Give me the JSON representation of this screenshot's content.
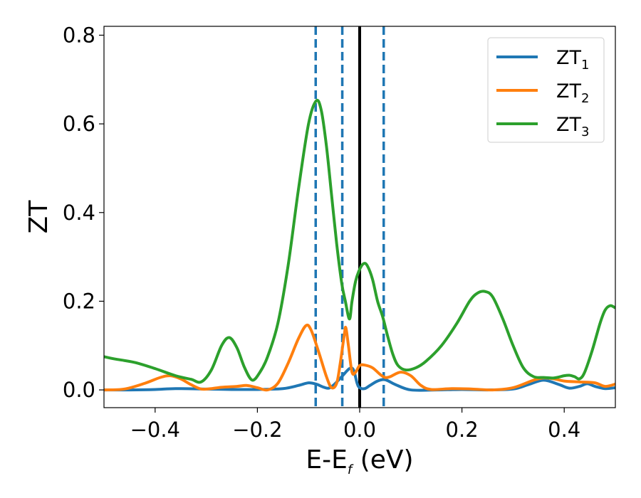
{
  "chart_data": {
    "type": "line",
    "xlabel": {
      "main": "E-E",
      "sub": "f",
      "rest": " (eV)"
    },
    "ylabel": "ZT",
    "xlim": [
      -0.5,
      0.5
    ],
    "ylim": [
      -0.04,
      0.82
    ],
    "xticks": [
      {
        "value": -0.4,
        "label": "−0.4"
      },
      {
        "value": -0.2,
        "label": "−0.2"
      },
      {
        "value": 0.0,
        "label": "0.0"
      },
      {
        "value": 0.2,
        "label": "0.2"
      },
      {
        "value": 0.4,
        "label": "0.4"
      }
    ],
    "yticks": [
      {
        "value": 0.0,
        "label": "0.0"
      },
      {
        "value": 0.2,
        "label": "0.2"
      },
      {
        "value": 0.4,
        "label": "0.4"
      },
      {
        "value": 0.6,
        "label": "0.6"
      },
      {
        "value": 0.8,
        "label": "0.8"
      }
    ],
    "grid": false,
    "legend_position": "top-right",
    "vertical_lines": [
      {
        "x": -0.086,
        "style": "dashed",
        "color": "#1f77b4"
      },
      {
        "x": -0.034,
        "style": "dashed",
        "color": "#1f77b4"
      },
      {
        "x": 0.0,
        "style": "solid",
        "color": "#000000"
      },
      {
        "x": 0.047,
        "style": "dashed",
        "color": "#1f77b4"
      }
    ],
    "series": [
      {
        "name": "ZT",
        "sub": "1",
        "color": "#1f77b4",
        "points": [
          [
            -0.5,
            0.0
          ],
          [
            -0.45,
            0.0
          ],
          [
            -0.4,
            0.001
          ],
          [
            -0.36,
            0.003
          ],
          [
            -0.3,
            0.002
          ],
          [
            -0.25,
            0.001
          ],
          [
            -0.2,
            0.001
          ],
          [
            -0.15,
            0.003
          ],
          [
            -0.12,
            0.01
          ],
          [
            -0.1,
            0.016
          ],
          [
            -0.085,
            0.013
          ],
          [
            -0.07,
            0.006
          ],
          [
            -0.06,
            0.004
          ],
          [
            -0.05,
            0.012
          ],
          [
            -0.035,
            0.03
          ],
          [
            -0.02,
            0.048
          ],
          [
            -0.012,
            0.045
          ],
          [
            -0.005,
            0.015
          ],
          [
            0.0,
            0.005
          ],
          [
            0.01,
            0.003
          ],
          [
            0.02,
            0.01
          ],
          [
            0.035,
            0.02
          ],
          [
            0.05,
            0.023
          ],
          [
            0.07,
            0.012
          ],
          [
            0.1,
            0.0
          ],
          [
            0.15,
            0.0
          ],
          [
            0.2,
            0.001
          ],
          [
            0.25,
            0.0
          ],
          [
            0.3,
            0.002
          ],
          [
            0.33,
            0.012
          ],
          [
            0.36,
            0.022
          ],
          [
            0.39,
            0.012
          ],
          [
            0.41,
            0.004
          ],
          [
            0.43,
            0.008
          ],
          [
            0.445,
            0.014
          ],
          [
            0.46,
            0.008
          ],
          [
            0.48,
            0.003
          ],
          [
            0.5,
            0.005
          ]
        ]
      },
      {
        "name": "ZT",
        "sub": "2",
        "color": "#ff7f0e",
        "points": [
          [
            -0.5,
            0.0
          ],
          [
            -0.46,
            0.002
          ],
          [
            -0.42,
            0.015
          ],
          [
            -0.39,
            0.028
          ],
          [
            -0.37,
            0.032
          ],
          [
            -0.35,
            0.025
          ],
          [
            -0.33,
            0.012
          ],
          [
            -0.31,
            0.002
          ],
          [
            -0.29,
            0.003
          ],
          [
            -0.27,
            0.006
          ],
          [
            -0.24,
            0.008
          ],
          [
            -0.22,
            0.01
          ],
          [
            -0.2,
            0.005
          ],
          [
            -0.18,
            0.0
          ],
          [
            -0.16,
            0.015
          ],
          [
            -0.14,
            0.06
          ],
          [
            -0.12,
            0.115
          ],
          [
            -0.105,
            0.145
          ],
          [
            -0.095,
            0.135
          ],
          [
            -0.08,
            0.085
          ],
          [
            -0.065,
            0.03
          ],
          [
            -0.055,
            0.005
          ],
          [
            -0.045,
            0.015
          ],
          [
            -0.038,
            0.06
          ],
          [
            -0.03,
            0.125
          ],
          [
            -0.027,
            0.14
          ],
          [
            -0.022,
            0.1
          ],
          [
            -0.015,
            0.04
          ],
          [
            -0.008,
            0.04
          ],
          [
            0.0,
            0.055
          ],
          [
            0.01,
            0.056
          ],
          [
            0.025,
            0.05
          ],
          [
            0.04,
            0.035
          ],
          [
            0.05,
            0.028
          ],
          [
            0.06,
            0.03
          ],
          [
            0.08,
            0.04
          ],
          [
            0.1,
            0.032
          ],
          [
            0.12,
            0.01
          ],
          [
            0.14,
            0.001
          ],
          [
            0.18,
            0.003
          ],
          [
            0.22,
            0.002
          ],
          [
            0.26,
            0.0
          ],
          [
            0.3,
            0.005
          ],
          [
            0.34,
            0.022
          ],
          [
            0.36,
            0.027
          ],
          [
            0.38,
            0.025
          ],
          [
            0.4,
            0.02
          ],
          [
            0.43,
            0.018
          ],
          [
            0.46,
            0.016
          ],
          [
            0.48,
            0.008
          ],
          [
            0.5,
            0.013
          ]
        ]
      },
      {
        "name": "ZT",
        "sub": "3",
        "color": "#2ca02c",
        "points": [
          [
            -0.5,
            0.075
          ],
          [
            -0.48,
            0.07
          ],
          [
            -0.44,
            0.062
          ],
          [
            -0.4,
            0.048
          ],
          [
            -0.36,
            0.032
          ],
          [
            -0.33,
            0.024
          ],
          [
            -0.31,
            0.018
          ],
          [
            -0.29,
            0.045
          ],
          [
            -0.27,
            0.1
          ],
          [
            -0.255,
            0.118
          ],
          [
            -0.24,
            0.095
          ],
          [
            -0.225,
            0.05
          ],
          [
            -0.21,
            0.022
          ],
          [
            -0.195,
            0.04
          ],
          [
            -0.18,
            0.075
          ],
          [
            -0.16,
            0.15
          ],
          [
            -0.14,
            0.28
          ],
          [
            -0.12,
            0.45
          ],
          [
            -0.1,
            0.6
          ],
          [
            -0.085,
            0.652
          ],
          [
            -0.075,
            0.63
          ],
          [
            -0.065,
            0.55
          ],
          [
            -0.055,
            0.44
          ],
          [
            -0.045,
            0.33
          ],
          [
            -0.035,
            0.24
          ],
          [
            -0.028,
            0.2
          ],
          [
            -0.02,
            0.16
          ],
          [
            -0.015,
            0.2
          ],
          [
            -0.008,
            0.245
          ],
          [
            0.0,
            0.272
          ],
          [
            0.008,
            0.285
          ],
          [
            0.015,
            0.28
          ],
          [
            0.025,
            0.25
          ],
          [
            0.035,
            0.2
          ],
          [
            0.045,
            0.165
          ],
          [
            0.055,
            0.12
          ],
          [
            0.065,
            0.08
          ],
          [
            0.075,
            0.055
          ],
          [
            0.09,
            0.045
          ],
          [
            0.11,
            0.05
          ],
          [
            0.13,
            0.065
          ],
          [
            0.16,
            0.1
          ],
          [
            0.19,
            0.15
          ],
          [
            0.215,
            0.2
          ],
          [
            0.23,
            0.218
          ],
          [
            0.245,
            0.222
          ],
          [
            0.26,
            0.21
          ],
          [
            0.28,
            0.16
          ],
          [
            0.3,
            0.1
          ],
          [
            0.32,
            0.05
          ],
          [
            0.34,
            0.03
          ],
          [
            0.36,
            0.028
          ],
          [
            0.38,
            0.027
          ],
          [
            0.4,
            0.032
          ],
          [
            0.41,
            0.033
          ],
          [
            0.42,
            0.03
          ],
          [
            0.43,
            0.025
          ],
          [
            0.44,
            0.04
          ],
          [
            0.455,
            0.09
          ],
          [
            0.47,
            0.15
          ],
          [
            0.48,
            0.18
          ],
          [
            0.49,
            0.19
          ],
          [
            0.5,
            0.185
          ]
        ]
      }
    ]
  }
}
